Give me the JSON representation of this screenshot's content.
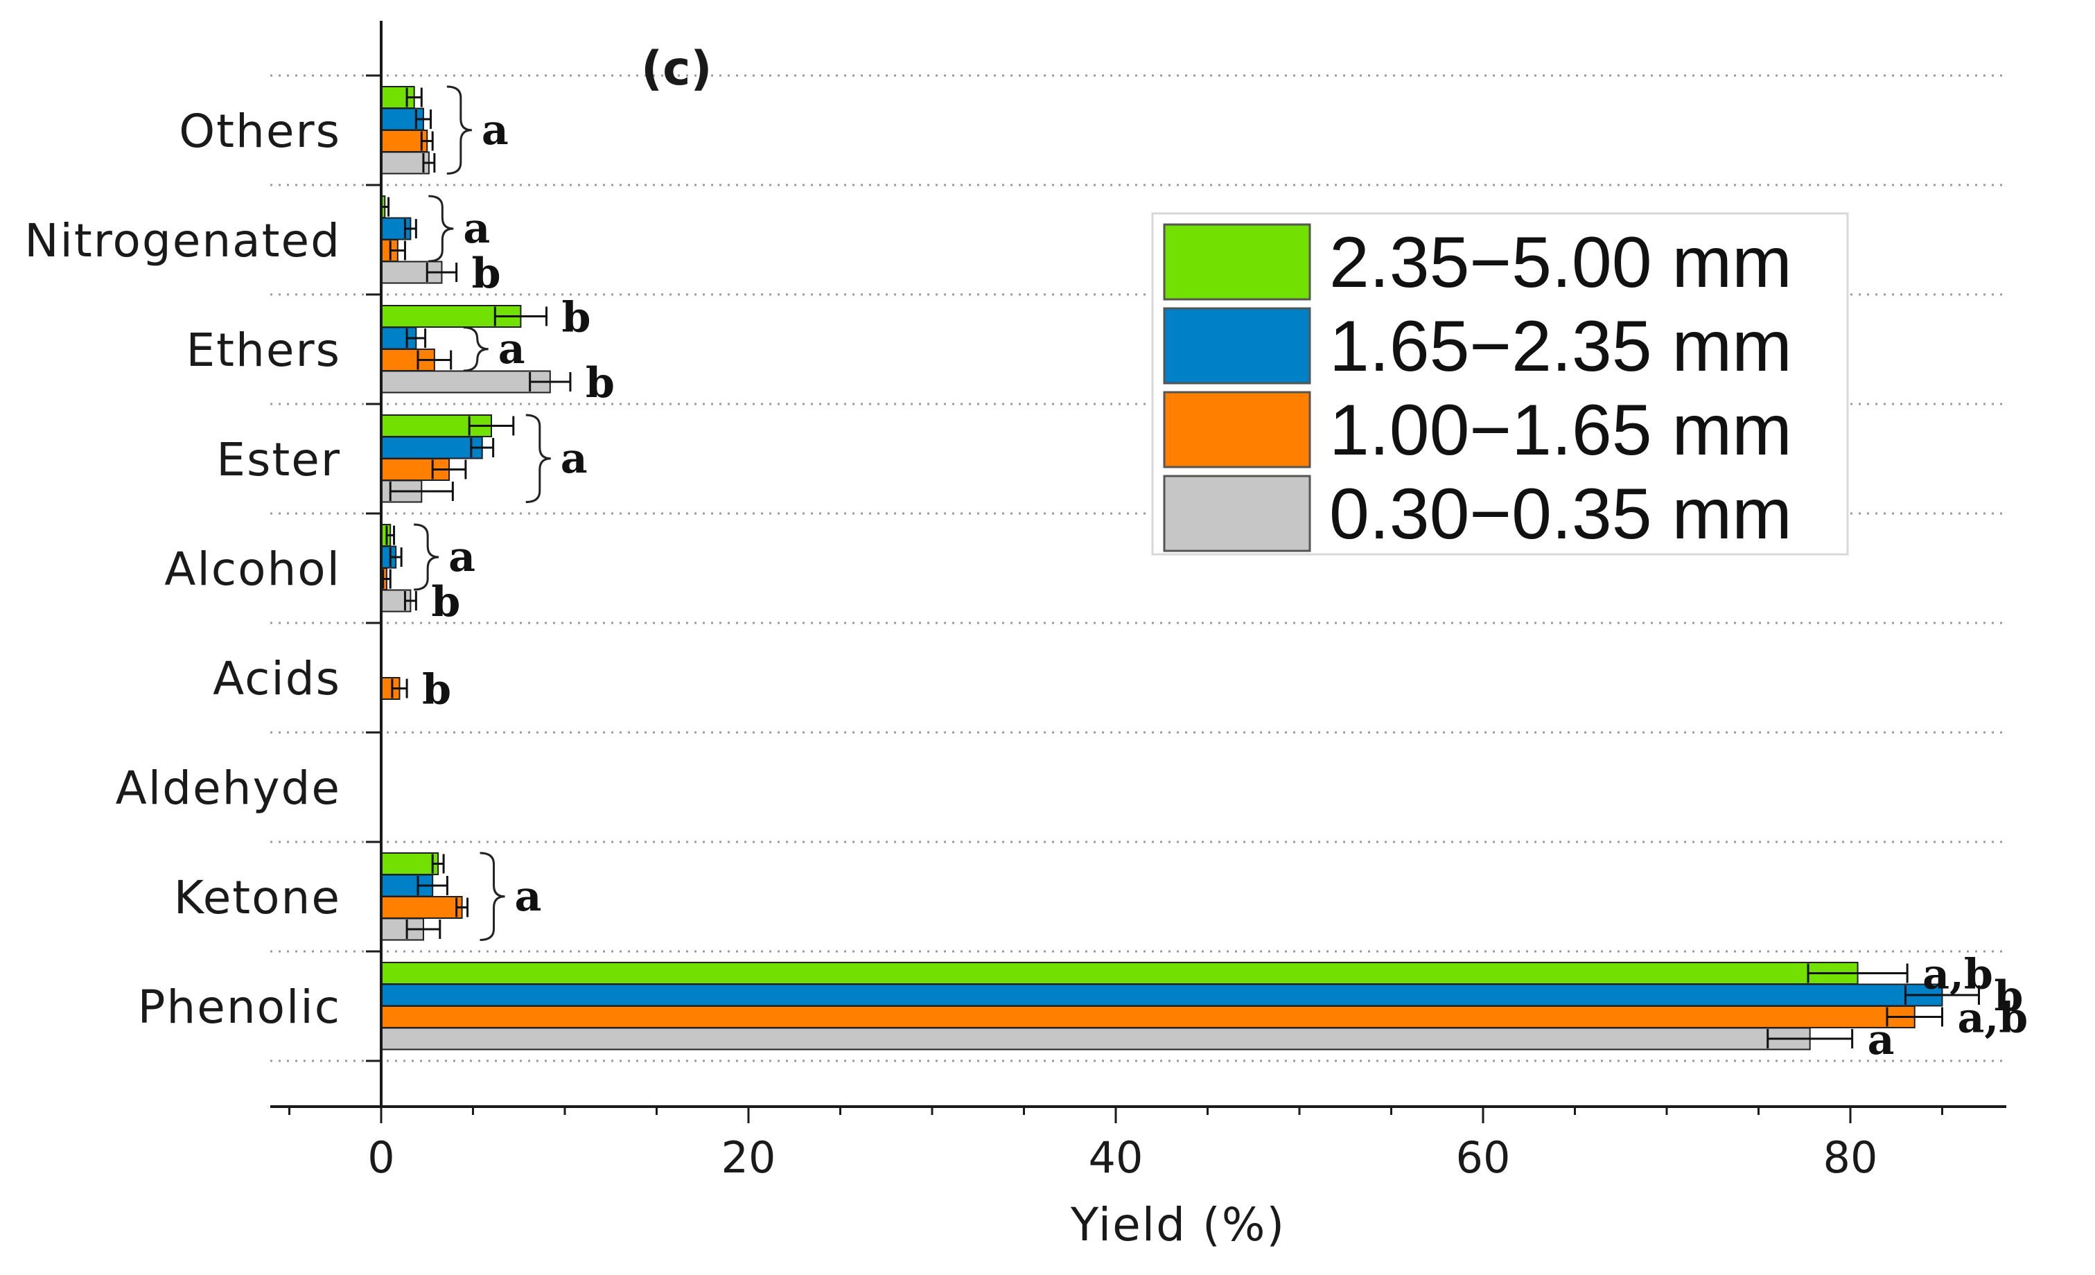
{
  "chart_data": {
    "type": "bar",
    "orientation": "horizontal",
    "panel_label": "(c)",
    "xlabel": "Yield (%)",
    "ylabel": "",
    "xlim": [
      -6,
      88
    ],
    "xticks": [
      0,
      20,
      40,
      60,
      80
    ],
    "grid": "dotted horizontal separators",
    "legend_position": "upper-right",
    "categories": [
      "Others",
      "Nitrogenated",
      "Ethers",
      "Ester",
      "Alcohol",
      "Acids",
      "Aldehyde",
      "Ketone",
      "Phenolic"
    ],
    "series": [
      {
        "name": "2.35−5.00 mm",
        "color": "#72e000",
        "values": [
          1.8,
          0.2,
          7.6,
          6.0,
          0.5,
          0,
          0,
          3.1,
          80.4
        ],
        "errors": [
          0.4,
          0.2,
          1.4,
          1.2,
          0.2,
          0,
          0,
          0.3,
          2.7
        ]
      },
      {
        "name": "1.65−2.35 mm",
        "color": "#0080c7",
        "values": [
          2.3,
          1.6,
          1.9,
          5.5,
          0.8,
          0,
          0,
          2.8,
          85.0
        ],
        "errors": [
          0.4,
          0.3,
          0.5,
          0.6,
          0.3,
          0,
          0,
          0.8,
          2.0
        ]
      },
      {
        "name": "1.00−1.65 mm",
        "color": "#ff7f00",
        "values": [
          2.5,
          0.9,
          2.9,
          3.7,
          0.3,
          1.0,
          0,
          4.4,
          83.5
        ],
        "errors": [
          0.3,
          0.4,
          0.9,
          0.9,
          0.2,
          0.4,
          0,
          0.3,
          1.5
        ]
      },
      {
        "name": "0.30−0.35 mm",
        "color": "#c6c6c6",
        "values": [
          2.6,
          3.3,
          9.2,
          2.2,
          1.6,
          0,
          0,
          2.3,
          77.8
        ],
        "errors": [
          0.3,
          0.8,
          1.1,
          1.7,
          0.3,
          0,
          0,
          0.9,
          2.3
        ]
      }
    ],
    "significance_labels": [
      {
        "category": "Others",
        "series": [
          0,
          3
        ],
        "bracket": true,
        "text": "a"
      },
      {
        "category": "Nitrogenated",
        "series": [
          0,
          2
        ],
        "bracket": true,
        "text": "a"
      },
      {
        "category": "Nitrogenated",
        "series": [
          3,
          3
        ],
        "bracket": false,
        "text": "b"
      },
      {
        "category": "Ethers",
        "series": [
          0,
          0
        ],
        "bracket": false,
        "text": "b"
      },
      {
        "category": "Ethers",
        "series": [
          1,
          2
        ],
        "bracket": true,
        "text": "a"
      },
      {
        "category": "Ethers",
        "series": [
          3,
          3
        ],
        "bracket": false,
        "text": "b"
      },
      {
        "category": "Ester",
        "series": [
          0,
          3
        ],
        "bracket": true,
        "text": "a"
      },
      {
        "category": "Alcohol",
        "series": [
          0,
          2
        ],
        "bracket": true,
        "text": "a"
      },
      {
        "category": "Alcohol",
        "series": [
          3,
          3
        ],
        "bracket": false,
        "text": "b"
      },
      {
        "category": "Acids",
        "series": [
          2,
          2
        ],
        "bracket": false,
        "text": "b"
      },
      {
        "category": "Ketone",
        "series": [
          0,
          3
        ],
        "bracket": true,
        "text": "a"
      },
      {
        "category": "Phenolic",
        "series": [
          0,
          0
        ],
        "bracket": false,
        "text": "a,b"
      },
      {
        "category": "Phenolic",
        "series": [
          1,
          1
        ],
        "bracket": false,
        "text": "b"
      },
      {
        "category": "Phenolic",
        "series": [
          2,
          2
        ],
        "bracket": false,
        "text": "a,b"
      },
      {
        "category": "Phenolic",
        "series": [
          3,
          3
        ],
        "bracket": false,
        "text": "a"
      }
    ]
  }
}
